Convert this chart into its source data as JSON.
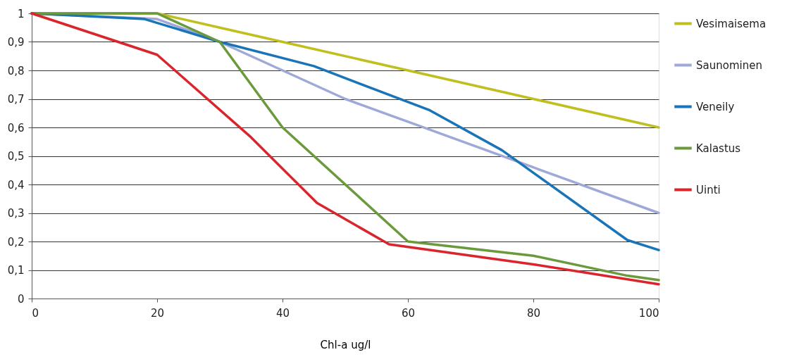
{
  "chart_data": {
    "type": "line",
    "xlabel": "Chl-a ug/l",
    "xlim": [
      0,
      100
    ],
    "xticks": [
      0,
      20,
      40,
      60,
      80,
      100
    ],
    "ylim": [
      0,
      1
    ],
    "yticks": [
      0,
      {
        "value": 0.1,
        "label": "0,1"
      },
      {
        "value": 0.2,
        "label": "0,2"
      },
      {
        "value": 0.3,
        "label": "0,3"
      },
      {
        "value": 0.4,
        "label": "0,4"
      },
      {
        "value": 0.5,
        "label": "0,5"
      },
      {
        "value": 0.6,
        "label": "0,6"
      },
      {
        "value": 0.7,
        "label": "0,7"
      },
      {
        "value": 0.8,
        "label": "0,8"
      },
      {
        "value": 0.9,
        "label": "0,9"
      },
      1
    ],
    "grid": "y",
    "legend": "right",
    "marker": "none",
    "line_style": "solid",
    "series": [
      {
        "name": "Vesimaisema",
        "color": "#bfbf1f",
        "x": [
          0,
          20,
          30,
          40,
          60,
          80,
          100
        ],
        "values": [
          1,
          1,
          0.95,
          0.9,
          0.8,
          0.7,
          0.6
        ]
      },
      {
        "name": "Saunominen",
        "color": "#9fa9d9",
        "x": [
          0,
          20,
          30,
          40,
          50,
          60,
          80,
          100
        ],
        "values": [
          1,
          0.98,
          0.9,
          0.8,
          0.7,
          0.62,
          0.46,
          0.3
        ]
      },
      {
        "name": "Veneily",
        "color": "#1a75b8",
        "x": [
          0,
          18,
          30,
          45,
          63.5,
          75,
          95,
          100
        ],
        "values": [
          1,
          0.98,
          0.9,
          0.815,
          0.66,
          0.52,
          0.205,
          0.17
        ]
      },
      {
        "name": "Kalastus",
        "color": "#6a9a3c",
        "x": [
          0,
          20,
          30,
          40,
          60,
          80,
          95,
          100
        ],
        "values": [
          1,
          1,
          0.9,
          0.6,
          0.2,
          0.15,
          0.08,
          0.065
        ]
      },
      {
        "name": "Uinti",
        "color": "#d9252b",
        "x": [
          0,
          20,
          35,
          45.5,
          57,
          80,
          100
        ],
        "values": [
          1,
          0.855,
          0.565,
          0.335,
          0.19,
          0.12,
          0.05
        ]
      }
    ]
  }
}
